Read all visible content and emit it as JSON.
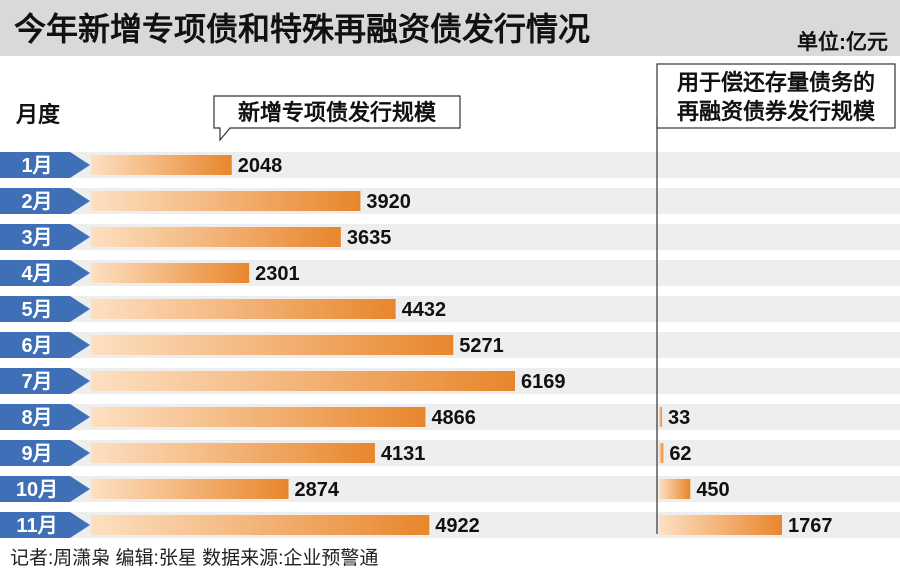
{
  "header": {
    "title": "今年新增专项债和特殊再融资债发行情况",
    "unit": "单位:亿元"
  },
  "footer": {
    "credits": "记者:周潇枭  编辑:张星  数据来源:企业预警通"
  },
  "colors": {
    "header_bg": "#d9d9d9",
    "bar_dark": "#e8862c",
    "bar_light": "#fde0c2",
    "month_tag": "#3f6fb7",
    "row_stripe": "#eeeeee"
  },
  "chart_data": {
    "type": "bar",
    "orientation": "horizontal",
    "category_label": "月度",
    "categories": [
      "1月",
      "2月",
      "3月",
      "4月",
      "5月",
      "6月",
      "7月",
      "8月",
      "9月",
      "10月",
      "11月"
    ],
    "series": [
      {
        "name": "新增专项债发行规模",
        "values": [
          2048,
          3920,
          3635,
          2301,
          4432,
          5271,
          6169,
          4866,
          4131,
          2874,
          4922
        ]
      },
      {
        "name": "用于偿还存量债务的再融资债券发行规模",
        "values": [
          null,
          null,
          null,
          null,
          null,
          null,
          null,
          33,
          62,
          450,
          1767
        ]
      }
    ]
  }
}
